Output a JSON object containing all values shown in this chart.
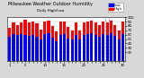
{
  "title": "Milwaukee Weather Outdoor Humidity",
  "subtitle": "Daily High/Low",
  "ylim": [
    0,
    100
  ],
  "background_color": "#d8d8d8",
  "plot_bg": "#ffffff",
  "high_color": "#ff0000",
  "low_color": "#0000ff",
  "legend_high": "High",
  "legend_low": "Low",
  "highs": [
    75,
    88,
    82,
    88,
    95,
    88,
    90,
    85,
    72,
    90,
    92,
    80,
    68,
    90,
    90,
    78,
    70,
    88,
    70,
    88,
    90,
    92,
    88,
    82,
    90,
    88,
    92,
    82,
    70,
    90
  ],
  "lows": [
    55,
    62,
    60,
    62,
    60,
    58,
    60,
    55,
    50,
    62,
    64,
    54,
    45,
    60,
    62,
    52,
    48,
    60,
    50,
    60,
    62,
    64,
    60,
    55,
    62,
    60,
    64,
    58,
    50,
    62
  ],
  "n_bars": 30,
  "xlabels": [
    "1",
    "",
    "",
    "",
    "5",
    "",
    "",
    "",
    "",
    "10",
    "",
    "",
    "",
    "",
    "15",
    "",
    "",
    "",
    "",
    "20",
    "",
    "",
    "",
    "",
    "25",
    "",
    "",
    "",
    "",
    "30"
  ],
  "dashed_vline_positions": [
    24,
    25
  ],
  "yticks": [
    20,
    30,
    40,
    50,
    60,
    70,
    80,
    90,
    100
  ],
  "ytick_labels": [
    "20",
    "30",
    "40",
    "50",
    "60",
    "70",
    "80",
    "90",
    "100"
  ],
  "title_fontsize": 3.5,
  "subtitle_fontsize": 3.0,
  "tick_fontsize": 2.8,
  "legend_fontsize": 2.8
}
